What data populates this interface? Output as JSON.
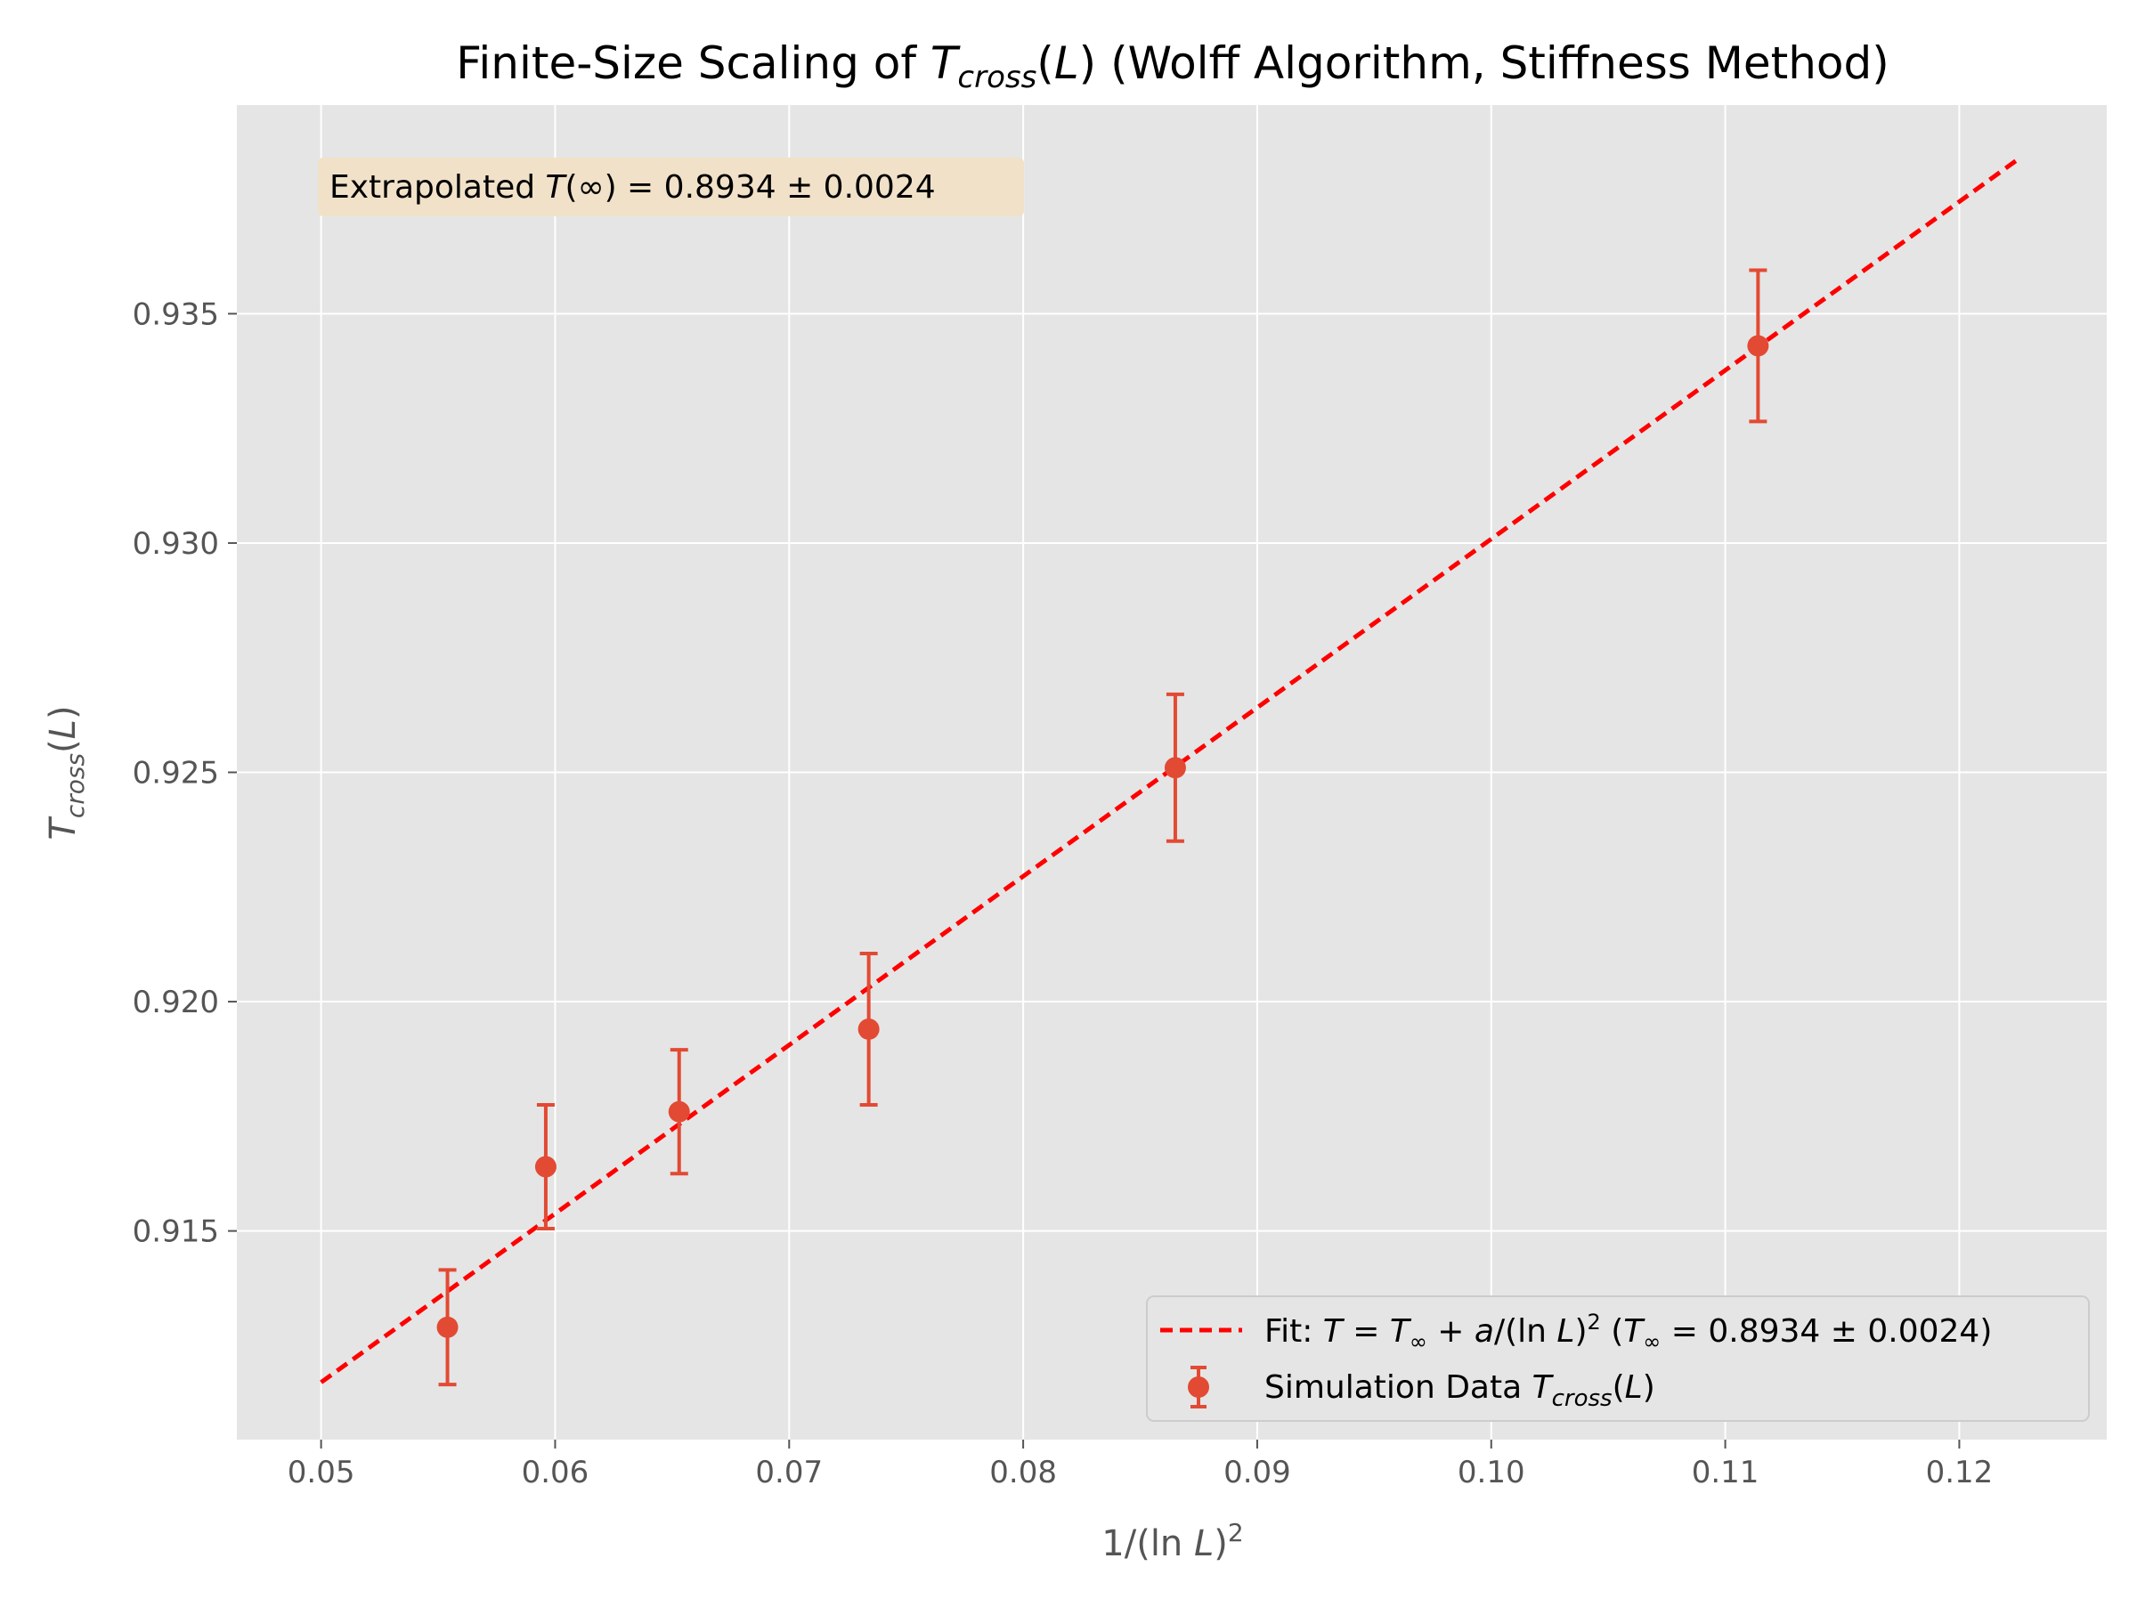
{
  "chart_data": {
    "type": "scatter",
    "title": "Finite-Size Scaling of T_cross(L) (Wolff Algorithm, Stiffness Method)",
    "xlabel": "1/(ln L)^2",
    "ylabel": "T_cross(L)",
    "xlim": [
      0.0464,
      0.1263
    ],
    "ylim": [
      0.91045,
      0.93955
    ],
    "xticks": [
      0.05,
      0.06,
      0.07,
      0.08,
      0.09,
      0.1,
      0.11,
      0.12
    ],
    "xtick_labels": [
      "0.05",
      "0.06",
      "0.07",
      "0.08",
      "0.09",
      "0.10",
      "0.11",
      "0.12"
    ],
    "yticks": [
      0.915,
      0.92,
      0.925,
      0.93,
      0.935
    ],
    "ytick_labels": [
      "0.915",
      "0.920",
      "0.925",
      "0.930",
      "0.935"
    ],
    "grid": true,
    "legend_position": "lower-right",
    "series": [
      {
        "name": "Fit: T = T∞ + a/(ln L)² (T∞ = 0.8934 ± 0.0024)",
        "kind": "line",
        "style": "dashed",
        "color": "#ff0000",
        "x": [
          0.05,
          0.1226
        ],
        "y": [
          0.9117,
          0.9384
        ]
      },
      {
        "name": "Simulation Data T_cross(L)",
        "kind": "errorbar",
        "color": "#e24a33",
        "x": [
          0.0554,
          0.0596,
          0.0653,
          0.0734,
          0.0865,
          0.1114
        ],
        "y": [
          0.9129,
          0.9164,
          0.9176,
          0.9194,
          0.9251,
          0.9343
        ],
        "yerr": [
          0.00125,
          0.00135,
          0.00135,
          0.00165,
          0.0016,
          0.00165
        ]
      }
    ],
    "annotation": "Extrapolated T(∞) = 0.8934 ± 0.0024"
  },
  "colors": {
    "plot_background": "#e5e5e5",
    "grid": "#ffffff",
    "fit_line": "#ff0000",
    "data_points": "#e24a33",
    "annotation_box": "#f0e1c8",
    "tick_text": "#555555"
  }
}
